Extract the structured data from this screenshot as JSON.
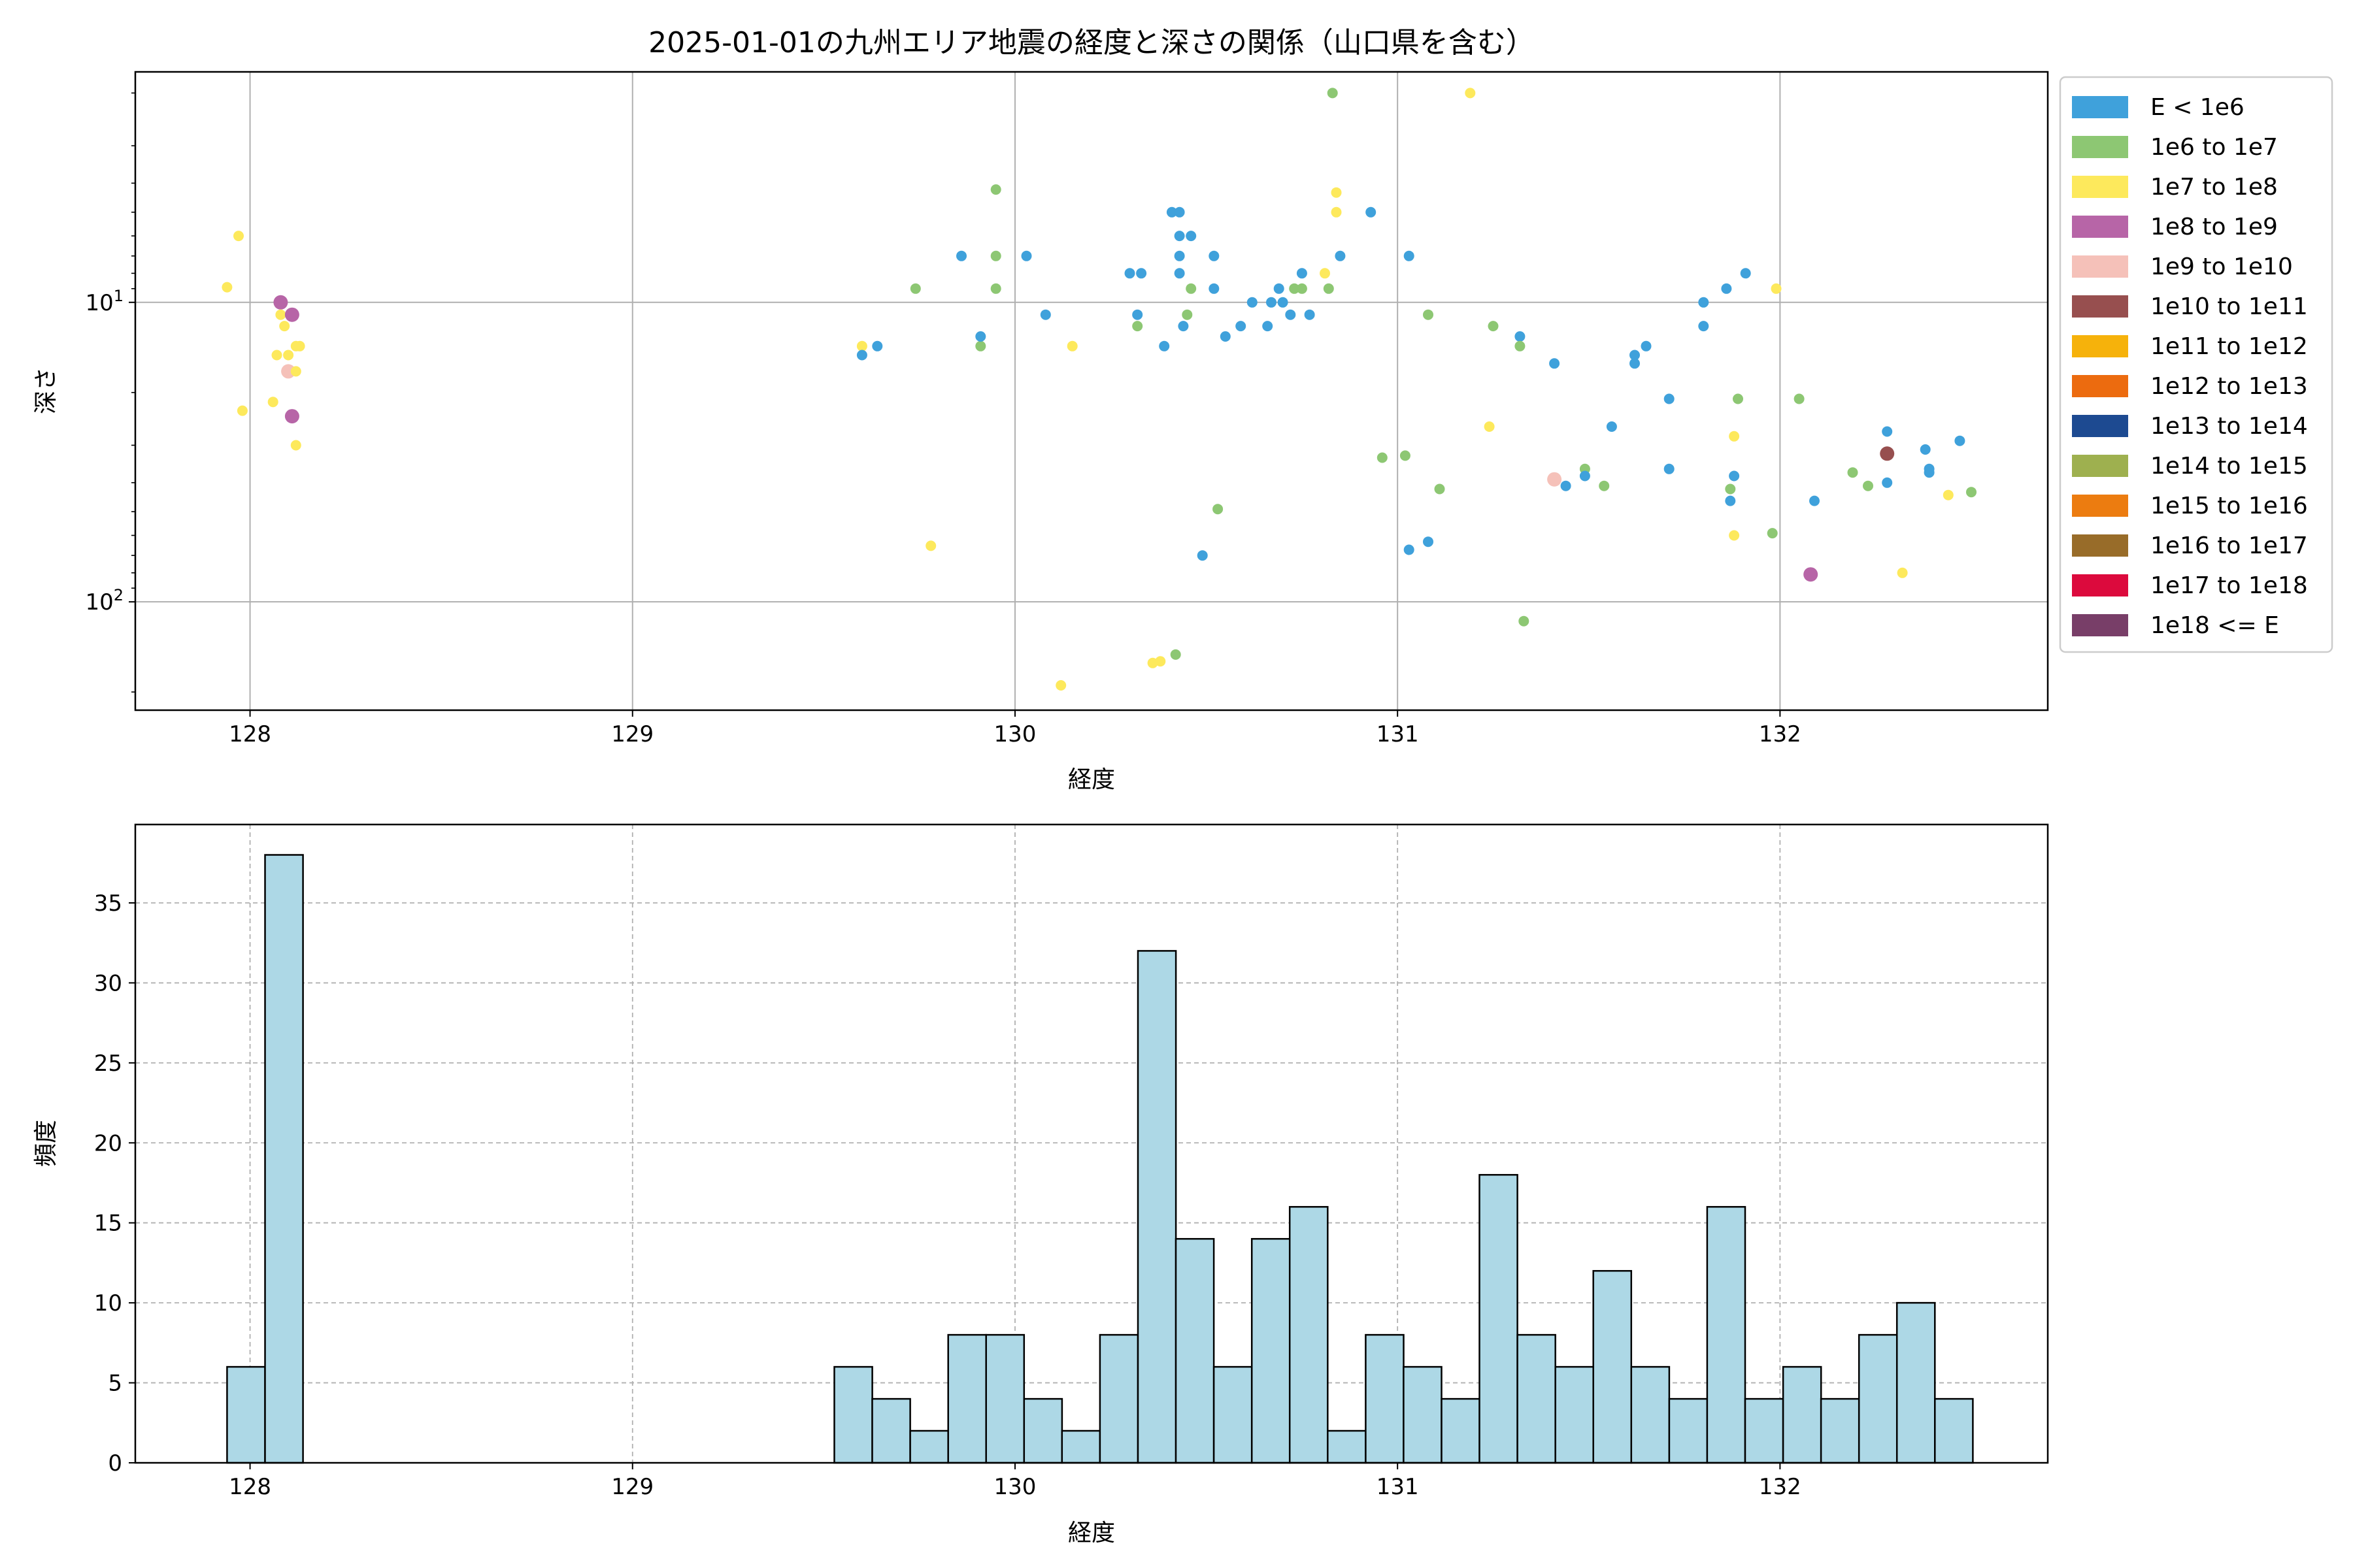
{
  "chart_data": [
    {
      "type": "scatter",
      "title": "2025-01-01の九州エリア地震の経度と深さの関係（山口県を含む）",
      "xlabel": "経度",
      "ylabel": "深さ",
      "xlim": [
        127.7,
        132.7
      ],
      "ylim": [
        230,
        1.7
      ],
      "yscale": "log",
      "y_inverted": true,
      "grid": true,
      "legend_position": "outside-right",
      "xticks": [
        "128",
        "129",
        "130",
        "131",
        "132"
      ],
      "yticks": [
        {
          "value": 10,
          "label": "10^1"
        },
        {
          "value": 100,
          "label": "10^2"
        }
      ],
      "legend": [
        {
          "label": "E < 1e6",
          "color": "#3fa1db"
        },
        {
          "label": "1e6 to 1e7",
          "color": "#8dc773"
        },
        {
          "label": "1e7 to 1e8",
          "color": "#fde95c"
        },
        {
          "label": "1e8 to 1e9",
          "color": "#b765a7"
        },
        {
          "label": "1e9 to 1e10",
          "color": "#f5c1b9"
        },
        {
          "label": "1e10 to 1e11",
          "color": "#974f4f"
        },
        {
          "label": "1e11 to 1e12",
          "color": "#f6b20b"
        },
        {
          "label": "1e12 to 1e13",
          "color": "#ec6b0f"
        },
        {
          "label": "1e13 to 1e14",
          "color": "#1d4a91"
        },
        {
          "label": "1e14 to 1e15",
          "color": "#9eb04f"
        },
        {
          "label": "1e15 to 1e16",
          "color": "#ec7c10"
        },
        {
          "label": "1e16 to 1e17",
          "color": "#986c29"
        },
        {
          "label": "1e17 to 1e18",
          "color": "#dc0a3d"
        },
        {
          "label": "1e18 <= E",
          "color": "#783e68"
        }
      ],
      "points": [
        {
          "x": 127.94,
          "y": 8.9,
          "c": 2
        },
        {
          "x": 127.97,
          "y": 6.0,
          "c": 2
        },
        {
          "x": 127.98,
          "y": 23.0,
          "c": 2
        },
        {
          "x": 128.06,
          "y": 21.5,
          "c": 2
        },
        {
          "x": 128.07,
          "y": 15.0,
          "c": 2
        },
        {
          "x": 128.08,
          "y": 10.0,
          "c": 3
        },
        {
          "x": 128.08,
          "y": 11.0,
          "c": 2
        },
        {
          "x": 128.09,
          "y": 12.0,
          "c": 2
        },
        {
          "x": 128.1,
          "y": 15.0,
          "c": 2
        },
        {
          "x": 128.1,
          "y": 17.0,
          "c": 4
        },
        {
          "x": 128.11,
          "y": 11.0,
          "c": 3
        },
        {
          "x": 128.12,
          "y": 17.0,
          "c": 2
        },
        {
          "x": 128.12,
          "y": 14.0,
          "c": 2
        },
        {
          "x": 128.13,
          "y": 14.0,
          "c": 2
        },
        {
          "x": 128.11,
          "y": 24.0,
          "c": 3
        },
        {
          "x": 128.12,
          "y": 30.0,
          "c": 2
        },
        {
          "x": 129.6,
          "y": 14.0,
          "c": 2
        },
        {
          "x": 129.6,
          "y": 15.0,
          "c": 0
        },
        {
          "x": 129.64,
          "y": 14.0,
          "c": 0
        },
        {
          "x": 129.74,
          "y": 9.0,
          "c": 1
        },
        {
          "x": 129.78,
          "y": 65.0,
          "c": 2
        },
        {
          "x": 129.86,
          "y": 7.0,
          "c": 0
        },
        {
          "x": 129.91,
          "y": 14.0,
          "c": 1
        },
        {
          "x": 129.91,
          "y": 13.0,
          "c": 0
        },
        {
          "x": 129.95,
          "y": 4.2,
          "c": 1
        },
        {
          "x": 129.95,
          "y": 7.0,
          "c": 1
        },
        {
          "x": 129.95,
          "y": 9.0,
          "c": 1
        },
        {
          "x": 130.03,
          "y": 7.0,
          "c": 0
        },
        {
          "x": 130.08,
          "y": 11.0,
          "c": 0
        },
        {
          "x": 130.12,
          "y": 190.0,
          "c": 2
        },
        {
          "x": 130.15,
          "y": 14.0,
          "c": 2
        },
        {
          "x": 130.3,
          "y": 8.0,
          "c": 0
        },
        {
          "x": 130.32,
          "y": 12.0,
          "c": 1
        },
        {
          "x": 130.32,
          "y": 11.0,
          "c": 0
        },
        {
          "x": 130.33,
          "y": 8.0,
          "c": 0
        },
        {
          "x": 130.36,
          "y": 160.0,
          "c": 2
        },
        {
          "x": 130.38,
          "y": 158.0,
          "c": 2
        },
        {
          "x": 130.39,
          "y": 14.0,
          "c": 0
        },
        {
          "x": 130.41,
          "y": 5.0,
          "c": 0
        },
        {
          "x": 130.43,
          "y": 5.0,
          "c": 0
        },
        {
          "x": 130.43,
          "y": 6.0,
          "c": 0
        },
        {
          "x": 130.43,
          "y": 7.0,
          "c": 0
        },
        {
          "x": 130.43,
          "y": 8.0,
          "c": 0
        },
        {
          "x": 130.44,
          "y": 12.0,
          "c": 0
        },
        {
          "x": 130.42,
          "y": 150.0,
          "c": 1
        },
        {
          "x": 130.45,
          "y": 11.0,
          "c": 1
        },
        {
          "x": 130.46,
          "y": 6.0,
          "c": 0
        },
        {
          "x": 130.46,
          "y": 9.0,
          "c": 1
        },
        {
          "x": 130.49,
          "y": 70.0,
          "c": 0
        },
        {
          "x": 130.52,
          "y": 7.0,
          "c": 0
        },
        {
          "x": 130.52,
          "y": 9.0,
          "c": 0
        },
        {
          "x": 130.53,
          "y": 49.0,
          "c": 1
        },
        {
          "x": 130.55,
          "y": 13.0,
          "c": 0
        },
        {
          "x": 130.59,
          "y": 12.0,
          "c": 0
        },
        {
          "x": 130.62,
          "y": 10.0,
          "c": 0
        },
        {
          "x": 130.66,
          "y": 12.0,
          "c": 0
        },
        {
          "x": 130.67,
          "y": 10.0,
          "c": 0
        },
        {
          "x": 130.69,
          "y": 9.0,
          "c": 0
        },
        {
          "x": 130.7,
          "y": 10.0,
          "c": 0
        },
        {
          "x": 130.72,
          "y": 11.0,
          "c": 0
        },
        {
          "x": 130.73,
          "y": 9.0,
          "c": 1
        },
        {
          "x": 130.75,
          "y": 8.0,
          "c": 0
        },
        {
          "x": 130.75,
          "y": 9.0,
          "c": 1
        },
        {
          "x": 130.77,
          "y": 11.0,
          "c": 0
        },
        {
          "x": 130.81,
          "y": 8.0,
          "c": 2
        },
        {
          "x": 130.82,
          "y": 9.0,
          "c": 1
        },
        {
          "x": 130.83,
          "y": 2.0,
          "c": 1
        },
        {
          "x": 130.84,
          "y": 4.3,
          "c": 2
        },
        {
          "x": 130.84,
          "y": 5.0,
          "c": 2
        },
        {
          "x": 130.85,
          "y": 7.0,
          "c": 0
        },
        {
          "x": 130.93,
          "y": 5.0,
          "c": 0
        },
        {
          "x": 130.96,
          "y": 33.0,
          "c": 1
        },
        {
          "x": 131.02,
          "y": 32.5,
          "c": 1
        },
        {
          "x": 131.03,
          "y": 7.0,
          "c": 0
        },
        {
          "x": 131.03,
          "y": 67.0,
          "c": 0
        },
        {
          "x": 131.08,
          "y": 63.0,
          "c": 0
        },
        {
          "x": 131.08,
          "y": 11.0,
          "c": 1
        },
        {
          "x": 131.11,
          "y": 42.0,
          "c": 1
        },
        {
          "x": 131.19,
          "y": 2.0,
          "c": 2
        },
        {
          "x": 131.24,
          "y": 26.0,
          "c": 2
        },
        {
          "x": 131.25,
          "y": 12.0,
          "c": 1
        },
        {
          "x": 131.32,
          "y": 13.0,
          "c": 0
        },
        {
          "x": 131.32,
          "y": 14.0,
          "c": 1
        },
        {
          "x": 131.33,
          "y": 116.0,
          "c": 1
        },
        {
          "x": 131.41,
          "y": 16.0,
          "c": 0
        },
        {
          "x": 131.41,
          "y": 39.0,
          "c": 4
        },
        {
          "x": 131.44,
          "y": 41.0,
          "c": 0
        },
        {
          "x": 131.49,
          "y": 36.0,
          "c": 1
        },
        {
          "x": 131.49,
          "y": 38.0,
          "c": 0
        },
        {
          "x": 131.54,
          "y": 41.0,
          "c": 1
        },
        {
          "x": 131.56,
          "y": 26.0,
          "c": 0
        },
        {
          "x": 131.62,
          "y": 15.0,
          "c": 0
        },
        {
          "x": 131.62,
          "y": 16.0,
          "c": 0
        },
        {
          "x": 131.65,
          "y": 14.0,
          "c": 0
        },
        {
          "x": 131.71,
          "y": 21.0,
          "c": 0
        },
        {
          "x": 131.71,
          "y": 36.0,
          "c": 0
        },
        {
          "x": 131.8,
          "y": 10.0,
          "c": 0
        },
        {
          "x": 131.8,
          "y": 12.0,
          "c": 0
        },
        {
          "x": 131.86,
          "y": 9.0,
          "c": 0
        },
        {
          "x": 131.87,
          "y": 46.0,
          "c": 0
        },
        {
          "x": 131.87,
          "y": 42.0,
          "c": 1
        },
        {
          "x": 131.88,
          "y": 38.0,
          "c": 0
        },
        {
          "x": 131.88,
          "y": 28.0,
          "c": 2
        },
        {
          "x": 131.88,
          "y": 60.0,
          "c": 2
        },
        {
          "x": 131.89,
          "y": 21.0,
          "c": 1
        },
        {
          "x": 131.91,
          "y": 8.0,
          "c": 0
        },
        {
          "x": 131.98,
          "y": 59.0,
          "c": 1
        },
        {
          "x": 131.99,
          "y": 9.0,
          "c": 2
        },
        {
          "x": 132.05,
          "y": 21.0,
          "c": 1
        },
        {
          "x": 132.08,
          "y": 81.0,
          "c": 3
        },
        {
          "x": 132.09,
          "y": 46.0,
          "c": 0
        },
        {
          "x": 132.19,
          "y": 37.0,
          "c": 1
        },
        {
          "x": 132.23,
          "y": 41.0,
          "c": 1
        },
        {
          "x": 132.28,
          "y": 27.0,
          "c": 0
        },
        {
          "x": 132.28,
          "y": 32.0,
          "c": 5
        },
        {
          "x": 132.28,
          "y": 40.0,
          "c": 0
        },
        {
          "x": 132.32,
          "y": 80.0,
          "c": 2
        },
        {
          "x": 132.38,
          "y": 31.0,
          "c": 0
        },
        {
          "x": 132.39,
          "y": 37.0,
          "c": 0
        },
        {
          "x": 132.39,
          "y": 36.0,
          "c": 0
        },
        {
          "x": 132.44,
          "y": 44.0,
          "c": 2
        },
        {
          "x": 132.47,
          "y": 29.0,
          "c": 0
        },
        {
          "x": 132.5,
          "y": 43.0,
          "c": 1
        }
      ]
    },
    {
      "type": "bar",
      "subtype": "histogram",
      "title": "",
      "xlabel": "経度",
      "ylabel": "頻度",
      "xlim": [
        127.7,
        132.7
      ],
      "ylim": [
        0,
        39.9
      ],
      "grid": true,
      "grid_style": "dashed",
      "bar_color": "#add8e6",
      "edge_color": "#000000",
      "xticks": [
        "128",
        "129",
        "130",
        "131",
        "132"
      ],
      "yticks": [
        "0",
        "5",
        "10",
        "15",
        "20",
        "25",
        "30",
        "35"
      ],
      "bin_start": 127.94,
      "bin_width": 0.09922,
      "values": [
        6,
        38,
        0,
        0,
        0,
        0,
        0,
        0,
        0,
        0,
        0,
        0,
        0,
        0,
        0,
        0,
        6,
        4,
        2,
        8,
        8,
        4,
        2,
        8,
        32,
        14,
        6,
        14,
        16,
        2,
        8,
        6,
        4,
        18,
        8,
        6,
        12,
        6,
        4,
        16,
        4,
        6,
        4,
        8,
        10,
        4
      ]
    }
  ]
}
